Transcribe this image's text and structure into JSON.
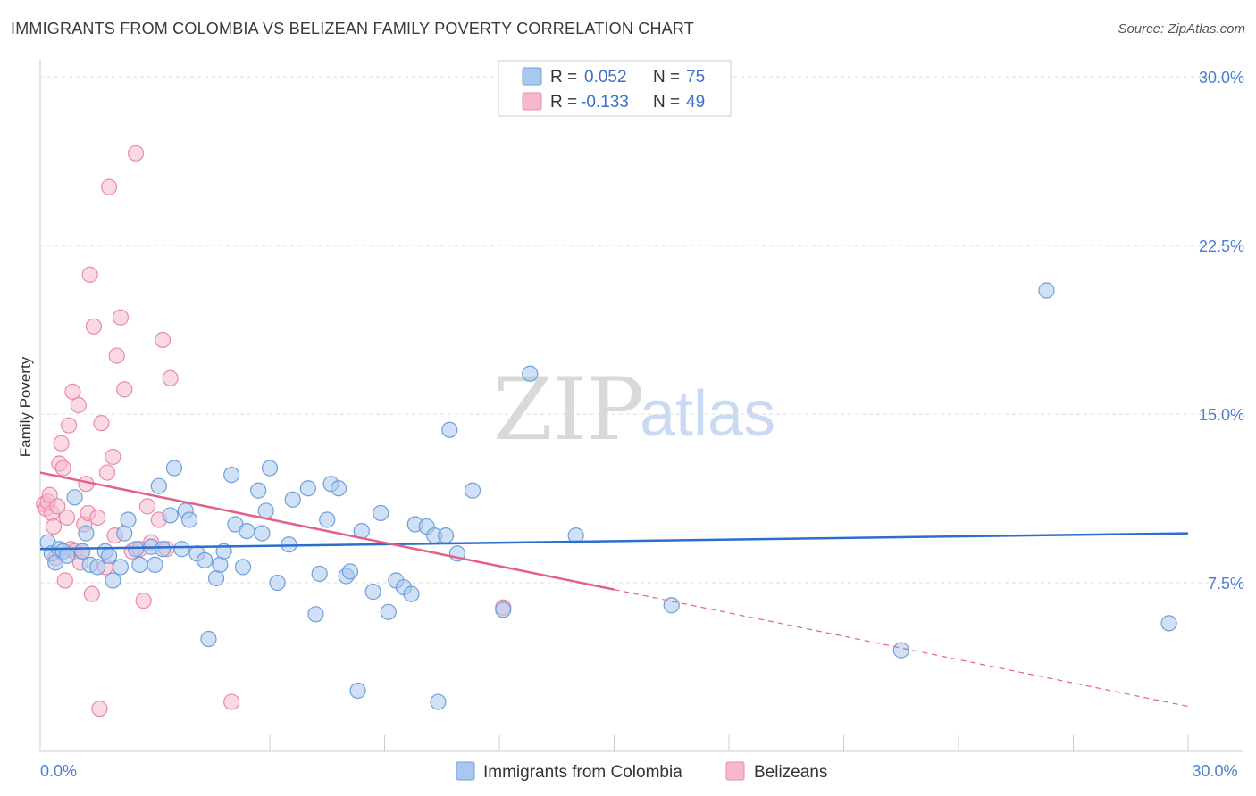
{
  "header": {
    "title": "IMMIGRANTS FROM COLOMBIA VS BELIZEAN FAMILY POVERTY CORRELATION CHART",
    "source": "Source: ZipAtlas.com"
  },
  "watermark": {
    "zip": "ZIP",
    "atlas": "atlas"
  },
  "legend_top": [
    {
      "r_label": "R =",
      "r_value": "0.052",
      "n_label": "N =",
      "n_value": "75"
    },
    {
      "r_label": "R =",
      "r_value": "-0.133",
      "n_label": "N =",
      "n_value": "49"
    }
  ],
  "legend_bottom": [
    {
      "label": "Immigrants from Colombia"
    },
    {
      "label": "Belizeans"
    }
  ],
  "colors": {
    "blue_fill": "#a9c8f0",
    "blue_stroke": "#6f9fd8",
    "blue_line": "#2a6fcf",
    "pink_fill": "#f6b9cc",
    "pink_stroke": "#e98aa9",
    "pink_line": "#e3608c",
    "grid": "#dddddd",
    "axis": "#cccccc",
    "tick_text": "#4a7fd0"
  },
  "chart_data": {
    "type": "scatter",
    "title": "IMMIGRANTS FROM COLOMBIA VS BELIZEAN FAMILY POVERTY CORRELATION CHART",
    "xlabel": "",
    "ylabel": "Family Poverty",
    "xlim": [
      0,
      30
    ],
    "ylim": [
      0,
      30.8
    ],
    "x_tick_labels": [
      {
        "value": 0,
        "label": "0.0%"
      },
      {
        "value": 30,
        "label": "30.0%"
      }
    ],
    "y_tick_labels": [
      {
        "value": 7.5,
        "label": "7.5%"
      },
      {
        "value": 15,
        "label": "15.0%"
      },
      {
        "value": 22.5,
        "label": "22.5%"
      },
      {
        "value": 30,
        "label": "30.0%"
      }
    ],
    "series": [
      {
        "name": "Immigrants from Colombia",
        "color": "blue",
        "trend": {
          "x0": 0,
          "y0": 9.0,
          "x1": 30,
          "y1": 9.7
        },
        "points": [
          [
            0.2,
            9.3
          ],
          [
            0.3,
            8.8
          ],
          [
            0.4,
            8.4
          ],
          [
            0.5,
            9.0
          ],
          [
            0.6,
            8.9
          ],
          [
            0.7,
            8.7
          ],
          [
            0.9,
            11.3
          ],
          [
            1.1,
            8.9
          ],
          [
            1.2,
            9.7
          ],
          [
            1.3,
            8.3
          ],
          [
            1.5,
            8.2
          ],
          [
            1.7,
            8.9
          ],
          [
            1.8,
            8.7
          ],
          [
            1.9,
            7.6
          ],
          [
            2.1,
            8.2
          ],
          [
            2.2,
            9.7
          ],
          [
            2.3,
            10.3
          ],
          [
            2.5,
            9.0
          ],
          [
            2.6,
            8.3
          ],
          [
            2.9,
            9.1
          ],
          [
            3.0,
            8.3
          ],
          [
            3.1,
            11.8
          ],
          [
            3.2,
            9.0
          ],
          [
            3.4,
            10.5
          ],
          [
            3.5,
            12.6
          ],
          [
            3.7,
            9.0
          ],
          [
            3.8,
            10.7
          ],
          [
            3.9,
            10.3
          ],
          [
            4.1,
            8.8
          ],
          [
            4.3,
            8.5
          ],
          [
            4.4,
            5.0
          ],
          [
            4.6,
            7.7
          ],
          [
            4.7,
            8.3
          ],
          [
            4.8,
            8.9
          ],
          [
            5.0,
            12.3
          ],
          [
            5.1,
            10.1
          ],
          [
            5.3,
            8.2
          ],
          [
            5.4,
            9.8
          ],
          [
            5.7,
            11.6
          ],
          [
            5.8,
            9.7
          ],
          [
            5.9,
            10.7
          ],
          [
            6.0,
            12.6
          ],
          [
            6.2,
            7.5
          ],
          [
            6.5,
            9.2
          ],
          [
            6.6,
            11.2
          ],
          [
            7.0,
            11.7
          ],
          [
            7.2,
            6.1
          ],
          [
            7.3,
            7.9
          ],
          [
            7.5,
            10.3
          ],
          [
            7.6,
            11.9
          ],
          [
            7.8,
            11.7
          ],
          [
            8.0,
            7.8
          ],
          [
            8.1,
            8.0
          ],
          [
            8.3,
            2.7
          ],
          [
            8.4,
            9.8
          ],
          [
            8.7,
            7.1
          ],
          [
            8.9,
            10.6
          ],
          [
            9.1,
            6.2
          ],
          [
            9.3,
            7.6
          ],
          [
            9.5,
            7.3
          ],
          [
            9.7,
            7.0
          ],
          [
            9.8,
            10.1
          ],
          [
            10.1,
            10.0
          ],
          [
            10.3,
            9.6
          ],
          [
            10.4,
            2.2
          ],
          [
            10.6,
            9.6
          ],
          [
            10.7,
            14.3
          ],
          [
            10.9,
            8.8
          ],
          [
            11.3,
            11.6
          ],
          [
            12.1,
            6.3
          ],
          [
            12.8,
            16.8
          ],
          [
            14.0,
            9.6
          ],
          [
            16.5,
            6.5
          ],
          [
            22.5,
            4.5
          ],
          [
            26.3,
            20.5
          ],
          [
            29.5,
            5.7
          ]
        ]
      },
      {
        "name": "Belizeans",
        "color": "pink",
        "trend": {
          "x0": 0,
          "y0": 12.4,
          "x1": 15,
          "y1": 7.2,
          "dash_x1": 30,
          "dash_y1": 2.0
        },
        "points": [
          [
            0.1,
            11.0
          ],
          [
            0.15,
            10.8
          ],
          [
            0.2,
            11.1
          ],
          [
            0.25,
            11.4
          ],
          [
            0.3,
            10.6
          ],
          [
            0.35,
            10.0
          ],
          [
            0.4,
            8.6
          ],
          [
            0.45,
            10.9
          ],
          [
            0.5,
            12.8
          ],
          [
            0.55,
            13.7
          ],
          [
            0.6,
            12.6
          ],
          [
            0.65,
            7.6
          ],
          [
            0.7,
            10.4
          ],
          [
            0.75,
            14.5
          ],
          [
            0.8,
            9.0
          ],
          [
            0.85,
            16.0
          ],
          [
            0.9,
            8.9
          ],
          [
            1.0,
            15.4
          ],
          [
            1.05,
            8.4
          ],
          [
            1.1,
            8.9
          ],
          [
            1.15,
            10.1
          ],
          [
            1.2,
            11.9
          ],
          [
            1.25,
            10.6
          ],
          [
            1.3,
            21.2
          ],
          [
            1.35,
            7.0
          ],
          [
            1.4,
            18.9
          ],
          [
            1.5,
            10.4
          ],
          [
            1.55,
            1.9
          ],
          [
            1.6,
            14.6
          ],
          [
            1.7,
            8.2
          ],
          [
            1.75,
            12.4
          ],
          [
            1.8,
            25.1
          ],
          [
            1.9,
            13.1
          ],
          [
            1.95,
            9.6
          ],
          [
            2.0,
            17.6
          ],
          [
            2.1,
            19.3
          ],
          [
            2.2,
            16.1
          ],
          [
            2.4,
            8.9
          ],
          [
            2.5,
            26.6
          ],
          [
            2.6,
            9.0
          ],
          [
            2.7,
            6.7
          ],
          [
            2.8,
            10.9
          ],
          [
            2.9,
            9.3
          ],
          [
            3.1,
            10.3
          ],
          [
            3.2,
            18.3
          ],
          [
            3.3,
            9.0
          ],
          [
            3.4,
            16.6
          ],
          [
            5.0,
            2.2
          ],
          [
            12.1,
            6.4
          ]
        ]
      }
    ]
  }
}
